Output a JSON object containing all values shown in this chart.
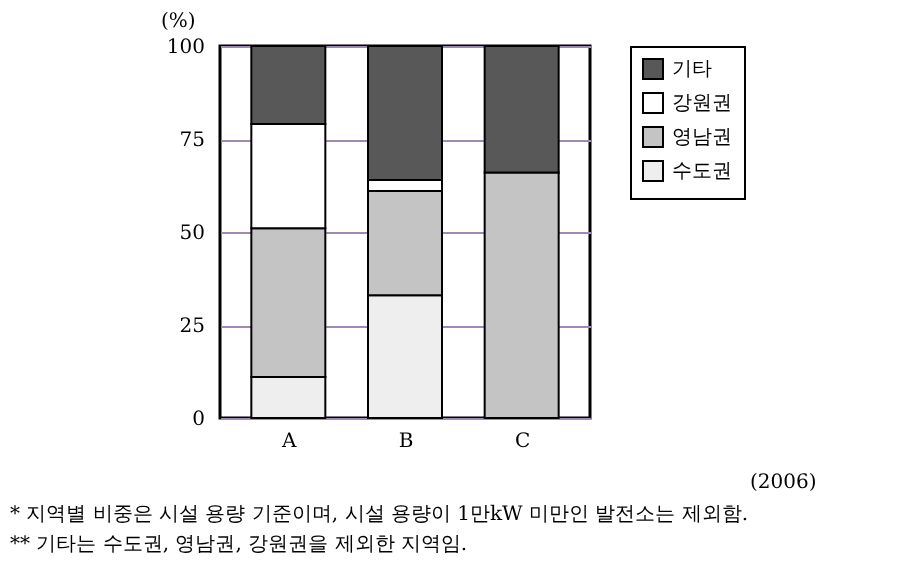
{
  "chart_data": {
    "type": "bar",
    "stacked": true,
    "ylabel": "(%)",
    "categories": [
      "A",
      "B",
      "C"
    ],
    "series": [
      {
        "name": "수도권",
        "color": "#eeeeee",
        "values": [
          11,
          33,
          null
        ]
      },
      {
        "name": "영남권",
        "color": "#c4c4c4",
        "values": [
          40,
          28,
          66
        ]
      },
      {
        "name": "강원권",
        "color": "#ffffff",
        "values": [
          28,
          3,
          null
        ]
      },
      {
        "name": "기타",
        "color": "#585858",
        "values": [
          21,
          36,
          34
        ]
      }
    ],
    "ylim": [
      0,
      100
    ],
    "yticks": [
      0,
      25,
      50,
      75,
      100
    ],
    "grid": "y",
    "legend": "right",
    "annotations": [
      "(2006)",
      "* 지역별 비중은 시설 용량 기준이며, 시설 용량이 1만kW 미만인 발전소는 제외함.",
      "** 기타는 수도권, 영남권, 강원권을 제외한 지역임."
    ]
  }
}
